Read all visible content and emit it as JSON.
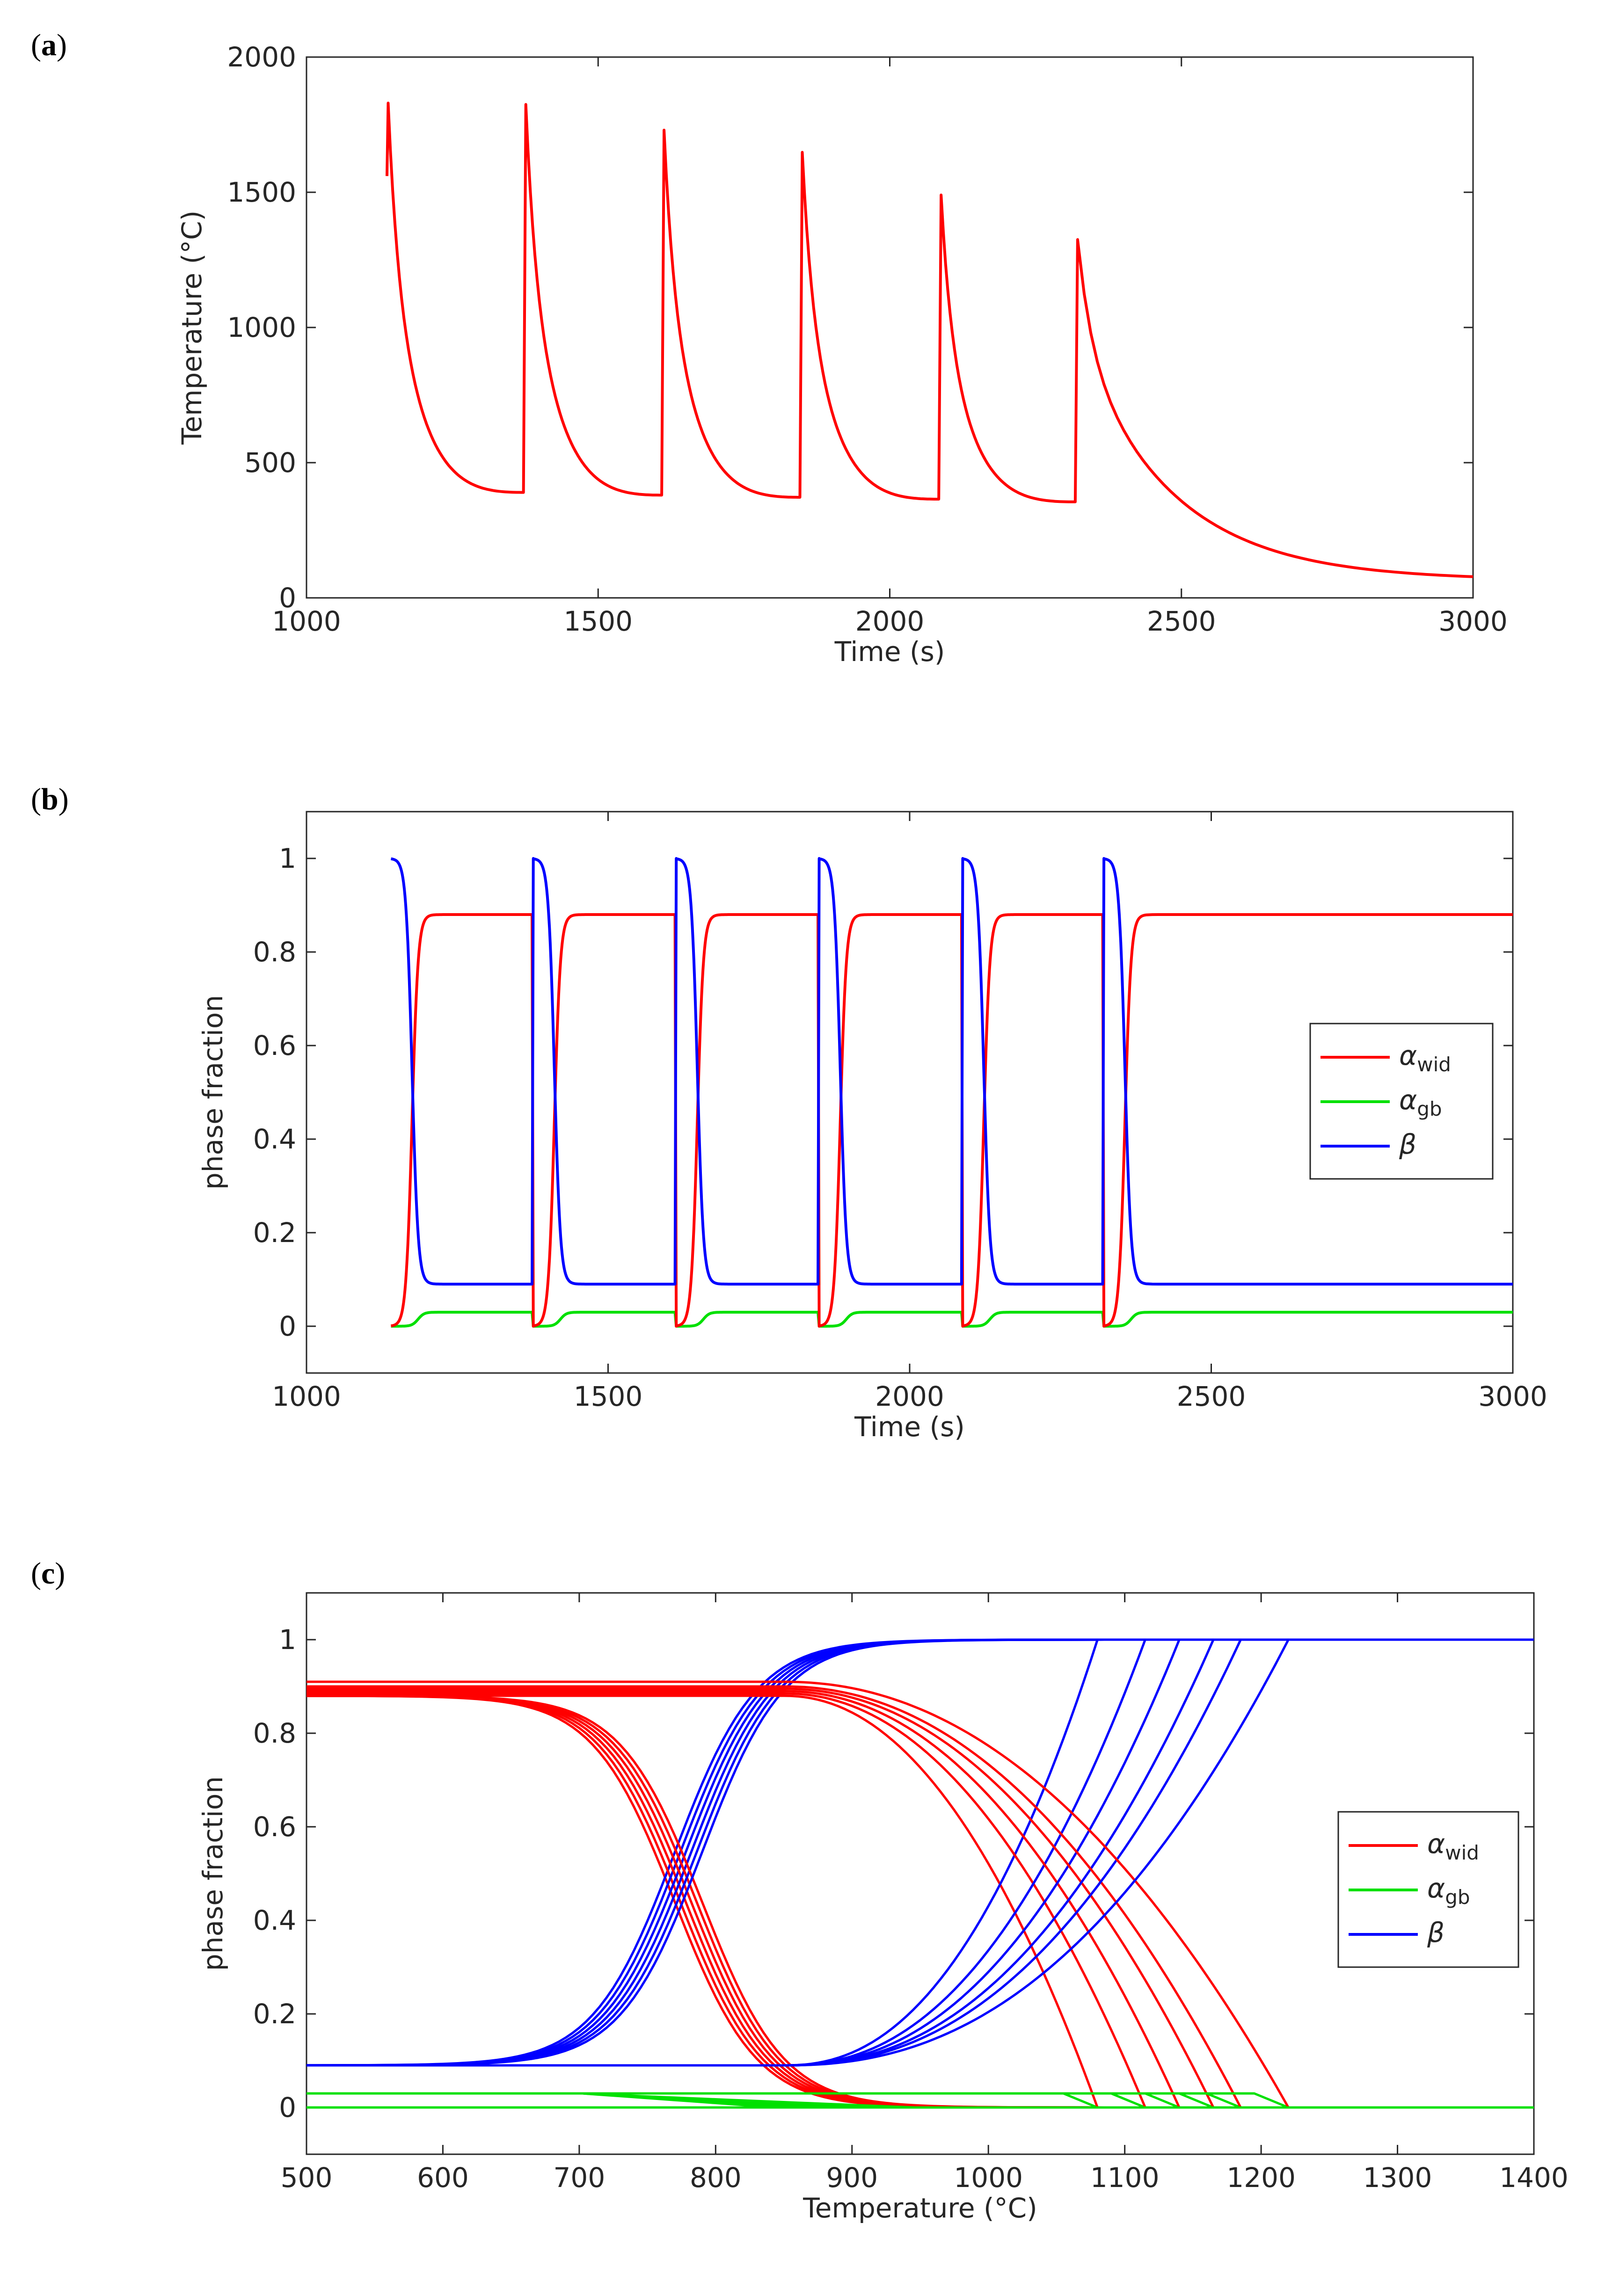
{
  "panels": [
    {
      "label_open": "(",
      "label_letter": "a",
      "label_close": ")",
      "chart_data": {
        "type": "line",
        "xlabel": "Time (s)",
        "ylabel": "Temperature (°C)",
        "xlim": [
          1000,
          3000
        ],
        "ylim": [
          0,
          2000
        ],
        "xticks": [
          1000,
          1500,
          2000,
          2500,
          3000
        ],
        "yticks": [
          0,
          500,
          1000,
          1500,
          2000
        ],
        "grid": false,
        "series": [
          {
            "name": "Temperature",
            "color": "#ff0000",
            "peaks": [
              [
                1140,
                1830
              ],
              [
                1376,
                1825
              ],
              [
                1613,
                1730
              ],
              [
                1850,
                1648
              ],
              [
                2088,
                1490
              ],
              [
                2322,
                1325
              ]
            ],
            "values_note": "thermal cycles; minima before each reheat",
            "minima": [
              [
                1372,
                390
              ],
              [
                1609,
                380
              ],
              [
                1846,
                372
              ],
              [
                2084,
                365
              ],
              [
                2318,
                355
              ]
            ],
            "final": [
              3000,
              65
            ]
          }
        ]
      }
    },
    {
      "label_open": "(",
      "label_letter": "b",
      "label_close": ")",
      "chart_data": {
        "type": "line",
        "xlabel": "Time (s)",
        "ylabel": "phase fraction",
        "xlim": [
          1000,
          3000
        ],
        "ylim": [
          -0.1,
          1.1
        ],
        "xticks": [
          1000,
          1500,
          2000,
          2500,
          3000
        ],
        "yticks": [
          0,
          0.2,
          0.4,
          0.6,
          0.8,
          1
        ],
        "grid": false,
        "legend_position": "right",
        "series": [
          {
            "name": "alpha_wid",
            "color": "#ff0000",
            "low": 0,
            "high": 0.88
          },
          {
            "name": "alpha_gb",
            "color": "#00e000",
            "low": 0,
            "high": 0.03
          },
          {
            "name": "beta",
            "color": "#0000ff",
            "low": 0.09,
            "high": 1.0
          }
        ],
        "cycle_starts": [
          1140,
          1376,
          1613,
          1850,
          2088,
          2322
        ]
      }
    },
    {
      "label_open": "(",
      "label_letter": "c",
      "label_close": ")",
      "chart_data": {
        "type": "line",
        "xlabel": "Temperature (°C)",
        "ylabel": "phase fraction",
        "xlim": [
          500,
          1400
        ],
        "ylim": [
          -0.1,
          1.1
        ],
        "xticks": [
          500,
          600,
          700,
          800,
          900,
          1000,
          1100,
          1200,
          1300,
          1400
        ],
        "yticks": [
          0,
          0.2,
          0.4,
          0.6,
          0.8,
          1
        ],
        "grid": false,
        "legend_position": "right",
        "series": [
          {
            "name": "alpha_wid",
            "color": "#ff0000"
          },
          {
            "name": "alpha_gb",
            "color": "#00e000"
          },
          {
            "name": "beta",
            "color": "#0000ff"
          }
        ],
        "cooling_midpoints": [
          770,
          774,
          778,
          782,
          786,
          790
        ],
        "heating_ends": [
          1080,
          1115,
          1140,
          1165,
          1185,
          1220
        ]
      }
    }
  ],
  "legend": {
    "alpha_sym": "α",
    "beta_sym": "β",
    "sub_wid": "wid",
    "sub_gb": "gb"
  }
}
